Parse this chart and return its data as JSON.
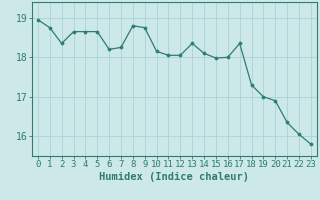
{
  "x": [
    0,
    1,
    2,
    3,
    4,
    5,
    6,
    7,
    8,
    9,
    10,
    11,
    12,
    13,
    14,
    15,
    16,
    17,
    18,
    19,
    20,
    21,
    22,
    23
  ],
  "y": [
    18.95,
    18.75,
    18.35,
    18.65,
    18.65,
    18.65,
    18.2,
    18.25,
    18.8,
    18.75,
    18.15,
    18.05,
    18.05,
    18.35,
    18.1,
    17.98,
    18.0,
    18.35,
    17.3,
    17.0,
    16.9,
    16.35,
    16.05,
    15.8
  ],
  "line_color": "#2e7d6e",
  "marker_color": "#2e7d6e",
  "bg_color": "#cce8e8",
  "grid_color": "#aad4d4",
  "xlabel": "Humidex (Indice chaleur)",
  "ylim": [
    15.5,
    19.4
  ],
  "yticks": [
    16,
    17,
    18,
    19
  ],
  "xtick_labels": [
    "0",
    "1",
    "2",
    "3",
    "4",
    "5",
    "6",
    "7",
    "8",
    "9",
    "10",
    "11",
    "12",
    "13",
    "14",
    "15",
    "16",
    "17",
    "18",
    "19",
    "20",
    "21",
    "22",
    "23"
  ],
  "axis_fontsize": 6.5,
  "xlabel_fontsize": 7.5
}
